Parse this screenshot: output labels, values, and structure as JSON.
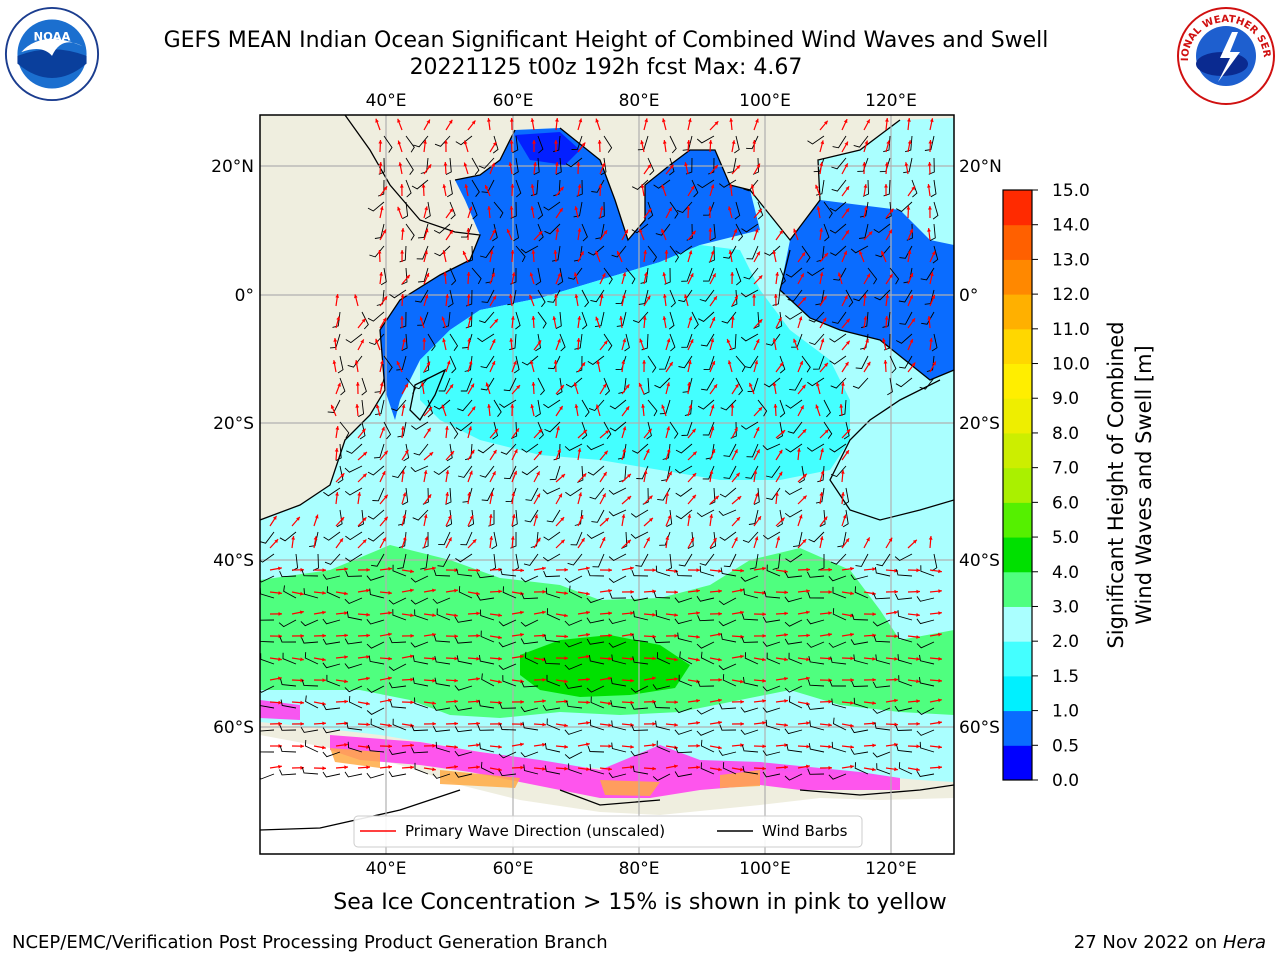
{
  "title_line1": "GEFS MEAN Indian Ocean Significant Height of Combined Wind Waves and Swell",
  "title_line2": "20221125 t00z 192h fcst   Max: 4.67",
  "top_lon_ticks": [
    "40°E",
    "60°E",
    "80°E",
    "100°E",
    "120°E"
  ],
  "bottom_lon_ticks": [
    "40°E",
    "60°E",
    "80°E",
    "100°E",
    "120°E"
  ],
  "left_lat_ticks": [
    "20°N",
    "0°",
    "20°S",
    "40°S",
    "60°S"
  ],
  "right_lat_ticks": [
    "20°N",
    "0°",
    "20°S",
    "40°S",
    "60°S"
  ],
  "legend": {
    "wave_label": "Primary Wave Direction (unscaled)",
    "barb_label": "Wind Barbs"
  },
  "colorbar": {
    "label_line1": "Significant Height of Combined",
    "label_line2": "Wind Waves and Swell [m]",
    "ticks": [
      "0.0",
      "0.5",
      "1.0",
      "1.5",
      "2.0",
      "3.0",
      "4.0",
      "5.0",
      "6.0",
      "7.0",
      "8.0",
      "9.0",
      "10.0",
      "11.0",
      "12.0",
      "13.0",
      "14.0",
      "15.0"
    ],
    "colors": [
      "#0000ff",
      "#0a6cff",
      "#00f0ff",
      "#44ffff",
      "#aaffff",
      "#4fff7f",
      "#00e000",
      "#55f000",
      "#aaf000",
      "#ccee00",
      "#eeee00",
      "#ffee00",
      "#ffd700",
      "#ffb000",
      "#ff8800",
      "#ff6000",
      "#ff2a00"
    ]
  },
  "field_colors": {
    "land": "#efeedf",
    "ice_pink": "#ff44ee",
    "ice_orange": "#ffaa44",
    "wave_arrow": "#ff0000",
    "wind_barb": "#000000"
  },
  "ice_note": "Sea Ice Concentration > 15% is shown in pink to yellow",
  "credit_left": "NCEP/EMC/Verification Post Processing Product Generation Branch",
  "credit_right_date": "27 Nov 2022 on ",
  "credit_right_machine": "Hera",
  "logos": {
    "noaa_text": "NOAA",
    "nws_text": "NATIONAL WEATHER SERVICE"
  }
}
